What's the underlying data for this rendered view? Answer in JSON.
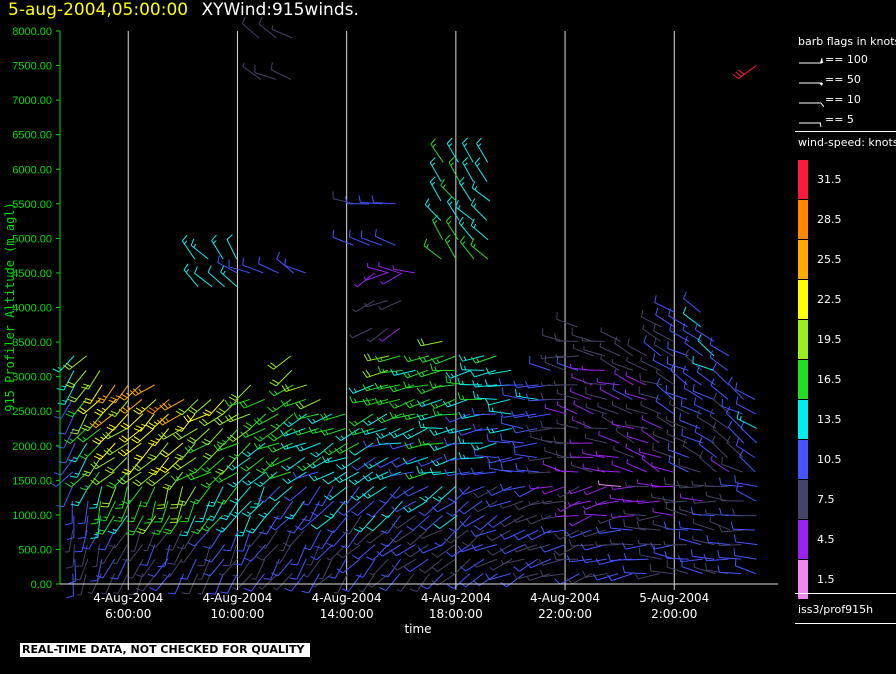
{
  "header": {
    "date_text": "5-aug-2004,05:00:00",
    "plot_name": "XYWind:915winds."
  },
  "notice": "REAL-TIME DATA, NOT CHECKED FOR QUALITY",
  "legend": {
    "flags_title": "barb flags in knots",
    "flags": [
      {
        "icon": "pennant-flag-icon",
        "label": "== 100"
      },
      {
        "icon": "half-pennant-flag-icon",
        "label": "== 50"
      },
      {
        "icon": "full-barb-flag-icon",
        "label": "== 10"
      },
      {
        "icon": "half-barb-flag-icon",
        "label": "== 5"
      }
    ],
    "speed_title": "wind-speed: knots",
    "colorbar": [
      {
        "label": "31.5",
        "color": "#ff1a3c"
      },
      {
        "label": "28.5",
        "color": "#ff8800"
      },
      {
        "label": "25.5",
        "color": "#ffaa00"
      },
      {
        "label": "22.5",
        "color": "#ffff00"
      },
      {
        "label": "19.5",
        "color": "#99ee22"
      },
      {
        "label": "16.5",
        "color": "#22dd22"
      },
      {
        "label": "13.5",
        "color": "#00eeee"
      },
      {
        "label": "10.5",
        "color": "#4455ff"
      },
      {
        "label": "7.5",
        "color": "#444466"
      },
      {
        "label": "4.5",
        "color": "#9922ee"
      },
      {
        "label": "1.5",
        "color": "#ee88ee"
      }
    ],
    "source": "iss3/prof915h"
  },
  "chart_data": {
    "type": "scatter",
    "subtype": "wind-barbs",
    "ylabel": "915 Profiler Altitude (m agl)",
    "xlabel": "time",
    "ylim": [
      0,
      8000
    ],
    "yticks": [
      "0.00",
      "500.00",
      "1000.00",
      "1500.00",
      "2000.00",
      "2500.00",
      "3000.00",
      "3500.00",
      "4000.00",
      "4500.00",
      "5000.00",
      "5500.00",
      "6000.00",
      "6500.00",
      "7000.00",
      "7500.00",
      "8000.00"
    ],
    "xlim_hours": [
      3.5,
      29.8
    ],
    "xticks": [
      {
        "hour": 6,
        "date": "4-Aug-2004",
        "time": "6:00:00"
      },
      {
        "hour": 10,
        "date": "4-Aug-2004",
        "time": "10:00:00"
      },
      {
        "hour": 14,
        "date": "4-Aug-2004",
        "time": "14:00:00"
      },
      {
        "hour": 18,
        "date": "4-Aug-2004",
        "time": "18:00:00"
      },
      {
        "hour": 22,
        "date": "4-Aug-2004",
        "time": "22:00:00"
      },
      {
        "hour": 26,
        "date": "5-Aug-2004",
        "time": "2:00:00"
      }
    ],
    "grid_x": true,
    "barb_interval_hours": 0.5,
    "profiles": [
      {
        "t": 4.0,
        "top": 3500,
        "dir": 215,
        "spd": 12
      },
      {
        "t": 4.5,
        "top": 3300,
        "dir": 220,
        "spd": 16
      },
      {
        "t": 5.0,
        "top": 3200,
        "dir": 225,
        "spd": 19
      },
      {
        "t": 5.5,
        "top": 3000,
        "dir": 225,
        "spd": 21
      },
      {
        "t": 6.0,
        "top": 3000,
        "dir": 230,
        "spd": 20
      },
      {
        "t": 6.5,
        "top": 3000,
        "dir": 230,
        "spd": 22
      },
      {
        "t": 7.0,
        "top": 2900,
        "dir": 230,
        "spd": 21
      },
      {
        "t": 7.5,
        "top": 2800,
        "dir": 230,
        "spd": 22
      },
      {
        "t": 8.0,
        "top": 2700,
        "dir": 232,
        "spd": 21
      },
      {
        "t": 8.5,
        "top": 2800,
        "dir": 232,
        "spd": 19
      },
      {
        "t": 9.0,
        "top": 2800,
        "dir": 235,
        "spd": 18
      },
      {
        "t": 9.5,
        "top": 2700,
        "dir": 235,
        "spd": 18
      },
      {
        "t": 10.0,
        "top": 2800,
        "dir": 235,
        "spd": 17
      },
      {
        "t": 10.5,
        "top": 2900,
        "dir": 238,
        "spd": 16
      },
      {
        "t": 11.0,
        "top": 2700,
        "dir": 238,
        "spd": 15
      },
      {
        "t": 11.5,
        "top": 2600,
        "dir": 240,
        "spd": 15
      },
      {
        "t": 12.0,
        "top": 3300,
        "dir": 240,
        "spd": 16
      },
      {
        "t": 12.5,
        "top": 3000,
        "dir": 242,
        "spd": 14
      },
      {
        "t": 13.0,
        "top": 2800,
        "dir": 242,
        "spd": 15
      },
      {
        "t": 13.5,
        "top": 2600,
        "dir": 245,
        "spd": 14
      },
      {
        "t": 14.0,
        "top": 2500,
        "dir": 245,
        "spd": 14
      },
      {
        "t": 14.5,
        "top": 2400,
        "dir": 248,
        "spd": 13
      },
      {
        "t": 15.0,
        "top": 3000,
        "dir": 248,
        "spd": 14
      },
      {
        "t": 15.5,
        "top": 3500,
        "dir": 250,
        "spd": 15
      },
      {
        "t": 16.0,
        "top": 3300,
        "dir": 252,
        "spd": 15
      },
      {
        "t": 16.5,
        "top": 3200,
        "dir": 252,
        "spd": 14
      },
      {
        "t": 17.0,
        "top": 3500,
        "dir": 255,
        "spd": 16
      },
      {
        "t": 17.5,
        "top": 3600,
        "dir": 258,
        "spd": 15
      },
      {
        "t": 18.0,
        "top": 3400,
        "dir": 260,
        "spd": 14
      },
      {
        "t": 18.5,
        "top": 3200,
        "dir": 262,
        "spd": 13
      },
      {
        "t": 19.0,
        "top": 3300,
        "dir": 262,
        "spd": 13
      },
      {
        "t": 19.5,
        "top": 3300,
        "dir": 265,
        "spd": 12
      },
      {
        "t": 20.0,
        "top": 3200,
        "dir": 268,
        "spd": 12
      },
      {
        "t": 20.5,
        "top": 3000,
        "dir": 270,
        "spd": 11
      },
      {
        "t": 21.0,
        "top": 2900,
        "dir": 272,
        "spd": 10
      },
      {
        "t": 21.5,
        "top": 3200,
        "dir": 275,
        "spd": 9
      },
      {
        "t": 22.0,
        "top": 3600,
        "dir": 278,
        "spd": 8
      },
      {
        "t": 22.5,
        "top": 3800,
        "dir": 280,
        "spd": 7
      },
      {
        "t": 23.0,
        "top": 3700,
        "dir": 282,
        "spd": 6
      },
      {
        "t": 23.5,
        "top": 3600,
        "dir": 285,
        "spd": 6
      },
      {
        "t": 24.0,
        "top": 3600,
        "dir": 288,
        "spd": 6
      },
      {
        "t": 24.5,
        "top": 3400,
        "dir": 290,
        "spd": 7
      },
      {
        "t": 25.0,
        "top": 3500,
        "dir": 292,
        "spd": 6
      },
      {
        "t": 25.5,
        "top": 3900,
        "dir": 295,
        "spd": 7
      },
      {
        "t": 26.0,
        "top": 4000,
        "dir": 298,
        "spd": 8
      },
      {
        "t": 26.5,
        "top": 3900,
        "dir": 300,
        "spd": 9
      },
      {
        "t": 27.0,
        "top": 4000,
        "dir": 300,
        "spd": 10
      },
      {
        "t": 27.5,
        "top": 3700,
        "dir": 302,
        "spd": 10
      },
      {
        "t": 28.0,
        "top": 3300,
        "dir": 305,
        "spd": 9
      },
      {
        "t": 28.5,
        "top": 2800,
        "dir": 305,
        "spd": 10
      },
      {
        "t": 29.0,
        "top": 2700,
        "dir": 308,
        "spd": 11
      }
    ],
    "upper_clusters": [
      {
        "t_start": 8.5,
        "t_end": 10.0,
        "alt_start": 4300,
        "alt_end": 4700,
        "dir": 320,
        "spd": 13
      },
      {
        "t_start": 10.0,
        "t_end": 12.5,
        "alt_start": 4500,
        "alt_end": 4700,
        "dir": 300,
        "spd": 11
      },
      {
        "t_start": 10.8,
        "t_end": 12.0,
        "alt_start": 7300,
        "alt_end": 7900,
        "dir": 300,
        "spd": 8
      },
      {
        "t_start": 14.3,
        "t_end": 15.8,
        "alt_start": 4900,
        "alt_end": 5500,
        "dir": 280,
        "spd": 10
      },
      {
        "t_start": 15.0,
        "t_end": 16.0,
        "alt_start": 3700,
        "alt_end": 4500,
        "dir": 240,
        "spd": 6
      },
      {
        "t_start": 17.5,
        "t_end": 19.2,
        "alt_start": 4700,
        "alt_end": 6100,
        "dir": 320,
        "spd": 14
      },
      {
        "t_start": 15.5,
        "t_end": 16.5,
        "alt_start": 4500,
        "alt_end": 4800,
        "dir": 280,
        "spd": 4
      },
      {
        "t_start": 29.0,
        "t_end": 29.0,
        "alt_start": 7500,
        "alt_end": 7500,
        "dir": 240,
        "spd": 31
      }
    ]
  }
}
